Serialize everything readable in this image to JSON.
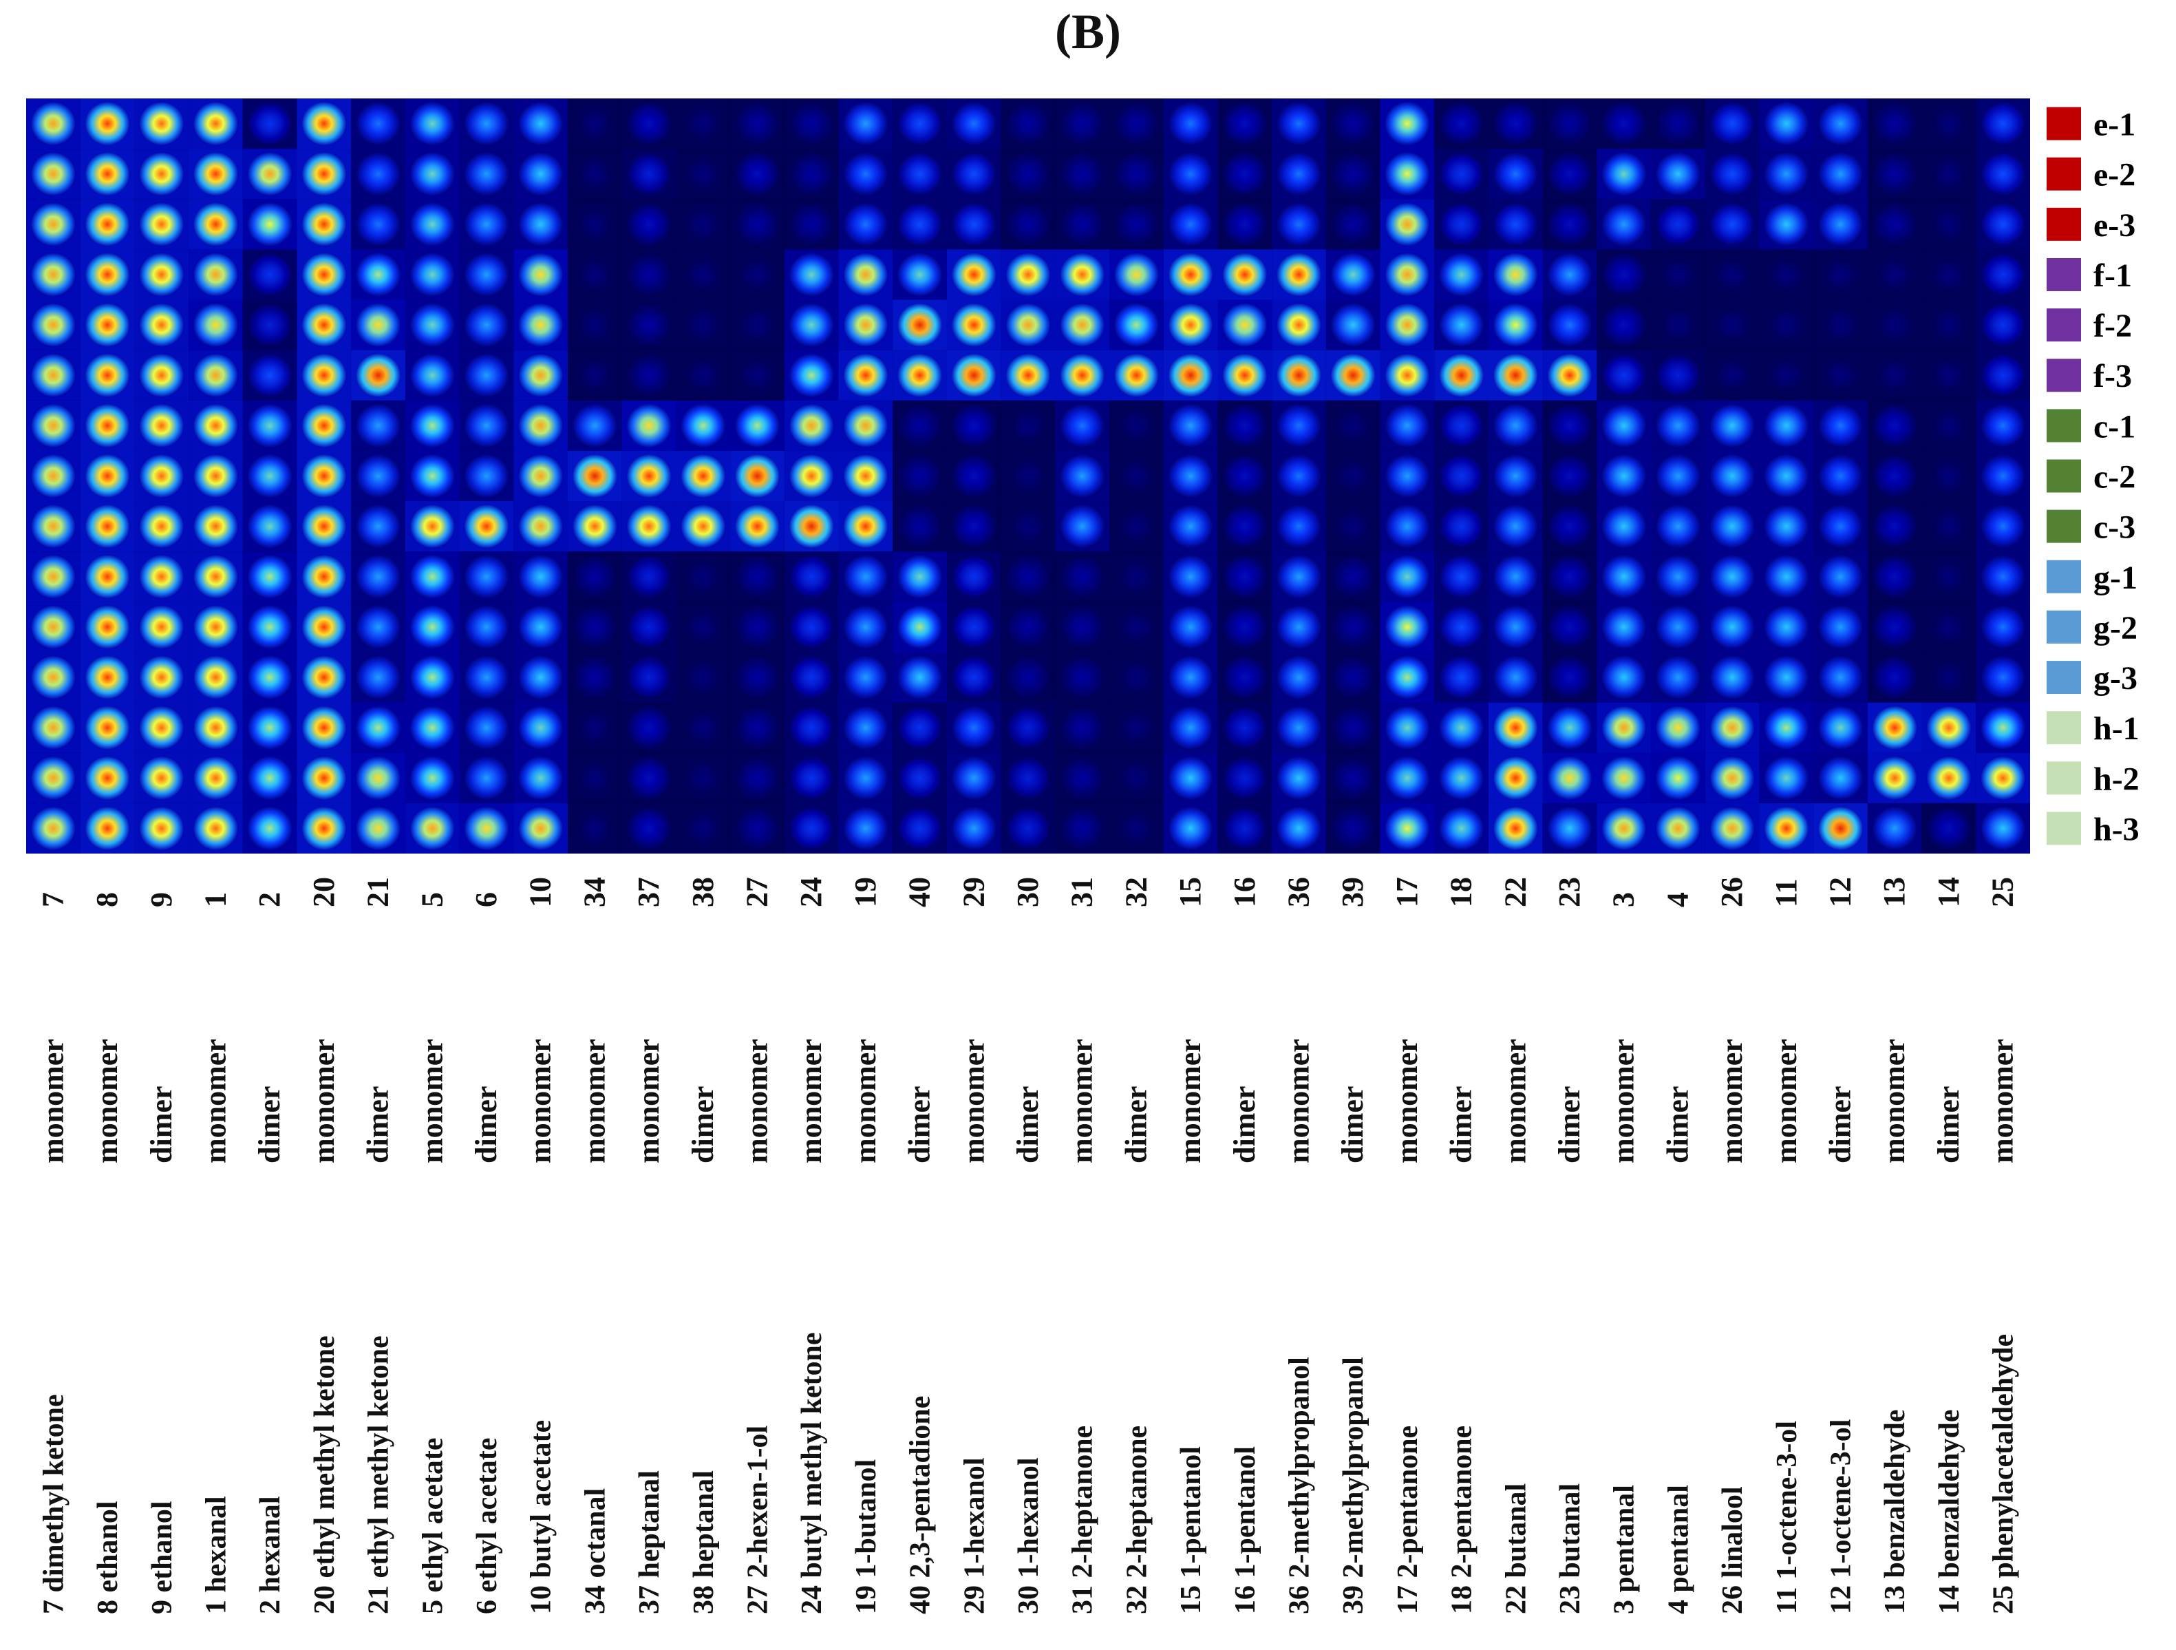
{
  "figure_label": "(B)",
  "chart_data": {
    "type": "heatmap",
    "title": "",
    "colormap": [
      "#000033",
      "#0000aa",
      "#0a3cff",
      "#29c6ff",
      "#ffff33",
      "#ff4400",
      "#cc0000"
    ],
    "rows": [
      {
        "label": "e-1",
        "group": "e",
        "color": "#c00000"
      },
      {
        "label": "e-2",
        "group": "e",
        "color": "#c00000"
      },
      {
        "label": "e-3",
        "group": "e",
        "color": "#c00000"
      },
      {
        "label": "f-1",
        "group": "f",
        "color": "#7030a0"
      },
      {
        "label": "f-2",
        "group": "f",
        "color": "#7030a0"
      },
      {
        "label": "f-3",
        "group": "f",
        "color": "#7030a0"
      },
      {
        "label": "c-1",
        "group": "c",
        "color": "#548235"
      },
      {
        "label": "c-2",
        "group": "c",
        "color": "#548235"
      },
      {
        "label": "c-3",
        "group": "c",
        "color": "#548235"
      },
      {
        "label": "g-1",
        "group": "g",
        "color": "#5b9bd5"
      },
      {
        "label": "g-2",
        "group": "g",
        "color": "#5b9bd5"
      },
      {
        "label": "g-3",
        "group": "g",
        "color": "#5b9bd5"
      },
      {
        "label": "h-1",
        "group": "h",
        "color": "#c5e0b4"
      },
      {
        "label": "h-2",
        "group": "h",
        "color": "#c5e0b4"
      },
      {
        "label": "h-3",
        "group": "h",
        "color": "#c5e0b4"
      }
    ],
    "columns": [
      {
        "id": "7",
        "form": "monomer",
        "name": "7   dimethyl ketone"
      },
      {
        "id": "8",
        "form": "monomer",
        "name": "8   ethanol"
      },
      {
        "id": "9",
        "form": "dimer",
        "name": "9   ethanol"
      },
      {
        "id": "1",
        "form": "monomer",
        "name": "1   hexanal"
      },
      {
        "id": "2",
        "form": "dimer",
        "name": "2   hexanal"
      },
      {
        "id": "20",
        "form": "monomer",
        "name": "20  ethyl methyl ketone"
      },
      {
        "id": "21",
        "form": "dimer",
        "name": "21  ethyl methyl ketone"
      },
      {
        "id": "5",
        "form": "monomer",
        "name": "5   ethyl acetate"
      },
      {
        "id": "6",
        "form": "dimer",
        "name": "6   ethyl acetate"
      },
      {
        "id": "10",
        "form": "monomer",
        "name": "10  butyl acetate"
      },
      {
        "id": "34",
        "form": "monomer",
        "name": "34  octanal"
      },
      {
        "id": "37",
        "form": "monomer",
        "name": "37  heptanal"
      },
      {
        "id": "38",
        "form": "dimer",
        "name": "38  heptanal"
      },
      {
        "id": "27",
        "form": "monomer",
        "name": "27  2-hexen-1-ol"
      },
      {
        "id": "24",
        "form": "monomer",
        "name": "24  butyl methyl ketone"
      },
      {
        "id": "19",
        "form": "monomer",
        "name": "19  1-butanol"
      },
      {
        "id": "40",
        "form": "dimer",
        "name": "40  2,3-pentadione"
      },
      {
        "id": "29",
        "form": "monomer",
        "name": "29  1-hexanol"
      },
      {
        "id": "30",
        "form": "dimer",
        "name": "30  1-hexanol"
      },
      {
        "id": "31",
        "form": "monomer",
        "name": "31  2-heptanone"
      },
      {
        "id": "32",
        "form": "dimer",
        "name": "32  2-heptanone"
      },
      {
        "id": "15",
        "form": "monomer",
        "name": "15  1-pentanol"
      },
      {
        "id": "16",
        "form": "dimer",
        "name": "16  1-pentanol"
      },
      {
        "id": "36",
        "form": "monomer",
        "name": "36  2-methylpropanol"
      },
      {
        "id": "39",
        "form": "dimer",
        "name": "39  2-methylpropanol"
      },
      {
        "id": "17",
        "form": "monomer",
        "name": "17 2-pentanone"
      },
      {
        "id": "18",
        "form": "dimer",
        "name": "18 2-pentanone"
      },
      {
        "id": "22",
        "form": "monomer",
        "name": "22  butanal"
      },
      {
        "id": "23",
        "form": "dimer",
        "name": "23  butanal"
      },
      {
        "id": "3",
        "form": "monomer",
        "name": "3 pentanal"
      },
      {
        "id": "4",
        "form": "dimer",
        "name": "4  pentanal"
      },
      {
        "id": "26",
        "form": "monomer",
        "name": "26 linalool"
      },
      {
        "id": "11",
        "form": "monomer",
        "name": "11 1-octene-3-ol"
      },
      {
        "id": "12",
        "form": "dimer",
        "name": "12 1-octene-3-ol"
      },
      {
        "id": "13",
        "form": "monomer",
        "name": "13 benzaldehyde"
      },
      {
        "id": "14",
        "form": "dimer",
        "name": "14 benzaldehyde"
      },
      {
        "id": "25",
        "form": "monomer",
        "name": "25 phenylacetaldehyde"
      }
    ],
    "intensity": [
      [
        0.75,
        0.85,
        0.8,
        0.8,
        0.3,
        0.85,
        0.4,
        0.55,
        0.45,
        0.5,
        0.1,
        0.2,
        0.1,
        0.15,
        0.15,
        0.45,
        0.35,
        0.4,
        0.15,
        0.15,
        0.15,
        0.4,
        0.2,
        0.4,
        0.15,
        0.65,
        0.2,
        0.2,
        0.15,
        0.2,
        0.15,
        0.35,
        0.5,
        0.45,
        0.15,
        0.1,
        0.35
      ],
      [
        0.75,
        0.85,
        0.8,
        0.85,
        0.75,
        0.85,
        0.4,
        0.55,
        0.45,
        0.5,
        0.1,
        0.25,
        0.1,
        0.2,
        0.15,
        0.4,
        0.35,
        0.35,
        0.15,
        0.15,
        0.15,
        0.4,
        0.2,
        0.4,
        0.15,
        0.65,
        0.3,
        0.4,
        0.2,
        0.55,
        0.5,
        0.35,
        0.45,
        0.45,
        0.15,
        0.1,
        0.35
      ],
      [
        0.75,
        0.85,
        0.8,
        0.85,
        0.65,
        0.85,
        0.4,
        0.55,
        0.45,
        0.5,
        0.1,
        0.2,
        0.1,
        0.15,
        0.15,
        0.4,
        0.35,
        0.35,
        0.15,
        0.15,
        0.15,
        0.4,
        0.2,
        0.4,
        0.15,
        0.75,
        0.3,
        0.35,
        0.2,
        0.45,
        0.3,
        0.35,
        0.5,
        0.45,
        0.15,
        0.1,
        0.35
      ],
      [
        0.75,
        0.85,
        0.8,
        0.75,
        0.3,
        0.85,
        0.6,
        0.55,
        0.45,
        0.7,
        0.1,
        0.15,
        0.1,
        0.1,
        0.55,
        0.75,
        0.55,
        0.85,
        0.8,
        0.8,
        0.7,
        0.85,
        0.85,
        0.85,
        0.55,
        0.75,
        0.55,
        0.7,
        0.45,
        0.2,
        0.1,
        0.1,
        0.1,
        0.1,
        0.1,
        0.1,
        0.3
      ],
      [
        0.75,
        0.85,
        0.8,
        0.7,
        0.25,
        0.85,
        0.7,
        0.55,
        0.45,
        0.7,
        0.1,
        0.15,
        0.1,
        0.1,
        0.55,
        0.75,
        0.9,
        0.85,
        0.75,
        0.75,
        0.6,
        0.8,
        0.7,
        0.8,
        0.5,
        0.75,
        0.5,
        0.65,
        0.4,
        0.2,
        0.1,
        0.1,
        0.1,
        0.1,
        0.1,
        0.1,
        0.3
      ],
      [
        0.75,
        0.85,
        0.8,
        0.75,
        0.35,
        0.85,
        0.9,
        0.55,
        0.45,
        0.75,
        0.1,
        0.15,
        0.1,
        0.1,
        0.6,
        0.85,
        0.85,
        0.9,
        0.85,
        0.85,
        0.85,
        0.9,
        0.85,
        0.9,
        0.9,
        0.8,
        0.9,
        0.9,
        0.85,
        0.3,
        0.25,
        0.1,
        0.1,
        0.1,
        0.1,
        0.1,
        0.3
      ],
      [
        0.75,
        0.85,
        0.8,
        0.8,
        0.55,
        0.85,
        0.45,
        0.6,
        0.45,
        0.75,
        0.45,
        0.7,
        0.6,
        0.6,
        0.75,
        0.75,
        0.15,
        0.2,
        0.1,
        0.4,
        0.1,
        0.45,
        0.2,
        0.4,
        0.1,
        0.45,
        0.3,
        0.45,
        0.2,
        0.5,
        0.45,
        0.5,
        0.5,
        0.4,
        0.2,
        0.1,
        0.4
      ],
      [
        0.75,
        0.85,
        0.8,
        0.8,
        0.55,
        0.85,
        0.45,
        0.6,
        0.45,
        0.75,
        0.9,
        0.85,
        0.85,
        0.9,
        0.8,
        0.8,
        0.15,
        0.2,
        0.1,
        0.45,
        0.1,
        0.45,
        0.2,
        0.4,
        0.1,
        0.45,
        0.3,
        0.45,
        0.2,
        0.5,
        0.45,
        0.5,
        0.5,
        0.4,
        0.2,
        0.1,
        0.4
      ],
      [
        0.75,
        0.85,
        0.8,
        0.8,
        0.55,
        0.85,
        0.45,
        0.8,
        0.85,
        0.75,
        0.8,
        0.8,
        0.8,
        0.85,
        0.9,
        0.85,
        0.15,
        0.2,
        0.1,
        0.45,
        0.1,
        0.45,
        0.2,
        0.4,
        0.1,
        0.45,
        0.3,
        0.45,
        0.2,
        0.5,
        0.45,
        0.5,
        0.5,
        0.4,
        0.2,
        0.1,
        0.4
      ],
      [
        0.75,
        0.85,
        0.8,
        0.8,
        0.6,
        0.85,
        0.45,
        0.6,
        0.45,
        0.5,
        0.15,
        0.25,
        0.1,
        0.15,
        0.3,
        0.45,
        0.55,
        0.3,
        0.15,
        0.15,
        0.1,
        0.45,
        0.2,
        0.45,
        0.15,
        0.55,
        0.35,
        0.45,
        0.2,
        0.5,
        0.45,
        0.5,
        0.5,
        0.45,
        0.2,
        0.1,
        0.4
      ],
      [
        0.75,
        0.85,
        0.8,
        0.8,
        0.6,
        0.85,
        0.45,
        0.6,
        0.45,
        0.5,
        0.15,
        0.25,
        0.1,
        0.15,
        0.3,
        0.45,
        0.6,
        0.3,
        0.15,
        0.15,
        0.1,
        0.45,
        0.2,
        0.45,
        0.15,
        0.65,
        0.35,
        0.45,
        0.2,
        0.5,
        0.45,
        0.5,
        0.5,
        0.45,
        0.2,
        0.1,
        0.4
      ],
      [
        0.75,
        0.85,
        0.8,
        0.8,
        0.6,
        0.85,
        0.45,
        0.6,
        0.45,
        0.5,
        0.15,
        0.25,
        0.1,
        0.15,
        0.3,
        0.45,
        0.5,
        0.3,
        0.15,
        0.15,
        0.1,
        0.45,
        0.2,
        0.45,
        0.15,
        0.6,
        0.35,
        0.45,
        0.2,
        0.5,
        0.45,
        0.5,
        0.5,
        0.45,
        0.2,
        0.1,
        0.4
      ],
      [
        0.75,
        0.85,
        0.8,
        0.8,
        0.6,
        0.85,
        0.6,
        0.6,
        0.45,
        0.55,
        0.1,
        0.2,
        0.1,
        0.15,
        0.3,
        0.45,
        0.3,
        0.4,
        0.25,
        0.15,
        0.1,
        0.45,
        0.25,
        0.45,
        0.15,
        0.55,
        0.55,
        0.85,
        0.55,
        0.75,
        0.7,
        0.75,
        0.6,
        0.55,
        0.85,
        0.8,
        0.6
      ],
      [
        0.75,
        0.85,
        0.8,
        0.8,
        0.6,
        0.85,
        0.7,
        0.6,
        0.45,
        0.55,
        0.1,
        0.2,
        0.1,
        0.15,
        0.3,
        0.45,
        0.3,
        0.45,
        0.25,
        0.15,
        0.1,
        0.5,
        0.25,
        0.5,
        0.15,
        0.55,
        0.55,
        0.85,
        0.7,
        0.7,
        0.65,
        0.75,
        0.55,
        0.5,
        0.8,
        0.8,
        0.8
      ],
      [
        0.75,
        0.85,
        0.8,
        0.8,
        0.6,
        0.85,
        0.7,
        0.75,
        0.7,
        0.75,
        0.1,
        0.2,
        0.1,
        0.15,
        0.3,
        0.45,
        0.3,
        0.45,
        0.25,
        0.15,
        0.1,
        0.5,
        0.25,
        0.5,
        0.15,
        0.65,
        0.55,
        0.85,
        0.5,
        0.75,
        0.75,
        0.75,
        0.85,
        0.9,
        0.45,
        0.2,
        0.5
      ]
    ]
  }
}
